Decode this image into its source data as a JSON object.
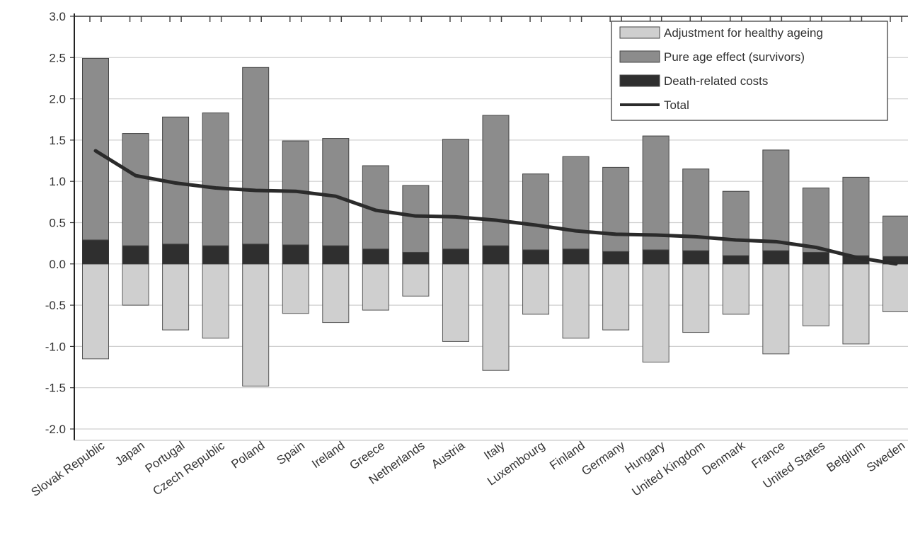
{
  "chart_data": {
    "type": "bar",
    "stacked": true,
    "categories": [
      "Slovak Republic",
      "Japan",
      "Portugal",
      "Czech Republic",
      "Poland",
      "Spain",
      "Ireland",
      "Greece",
      "Netherlands",
      "Austria",
      "Italy",
      "Luxembourg",
      "Finland",
      "Germany",
      "Hungary",
      "United Kingdom",
      "Denmark",
      "France",
      "United States",
      "Belgium",
      "Sweden"
    ],
    "series": [
      {
        "name": "Adjustment for healthy ageing",
        "kind": "bar",
        "color": "#cfcfcf",
        "values": [
          -1.15,
          -0.5,
          -0.8,
          -0.9,
          -1.48,
          -0.6,
          -0.71,
          -0.56,
          -0.39,
          -0.94,
          -1.29,
          -0.61,
          -0.9,
          -0.8,
          -1.19,
          -0.83,
          -0.61,
          -1.09,
          -0.75,
          -0.97,
          -0.58
        ]
      },
      {
        "name": "Pure age effect (survivors)",
        "kind": "bar",
        "color": "#8c8c8c",
        "values": [
          2.2,
          1.36,
          1.54,
          1.61,
          2.14,
          1.26,
          1.3,
          1.01,
          0.81,
          1.33,
          1.58,
          0.92,
          1.12,
          1.02,
          1.38,
          0.99,
          0.78,
          1.22,
          0.78,
          0.95,
          0.49
        ]
      },
      {
        "name": "Death-related costs",
        "kind": "bar",
        "color": "#2f2f2f",
        "values": [
          0.29,
          0.22,
          0.24,
          0.22,
          0.24,
          0.23,
          0.22,
          0.18,
          0.14,
          0.18,
          0.22,
          0.17,
          0.18,
          0.15,
          0.17,
          0.16,
          0.1,
          0.16,
          0.14,
          0.1,
          0.09
        ]
      },
      {
        "name": "Total",
        "kind": "line",
        "color": "#2b2b2b",
        "values": [
          1.37,
          1.07,
          0.98,
          0.92,
          0.89,
          0.88,
          0.82,
          0.65,
          0.58,
          0.57,
          0.53,
          0.47,
          0.4,
          0.36,
          0.35,
          0.33,
          0.29,
          0.27,
          0.2,
          0.08,
          0.0
        ]
      }
    ],
    "xlabel": "",
    "ylabel": "",
    "ylim": [
      -2.0,
      3.0
    ],
    "yticks": [
      "3.0",
      "2.5",
      "2.0",
      "1.5",
      "1.0",
      "0.5",
      "0.0",
      "-0.5",
      "-1.0",
      "-1.5",
      "-2.0"
    ],
    "ytick_values": [
      3.0,
      2.5,
      2.0,
      1.5,
      1.0,
      0.5,
      0.0,
      -0.5,
      -1.0,
      -1.5,
      -2.0
    ],
    "grid": true,
    "legend_position": "top-right",
    "legend": [
      "Adjustment for healthy ageing",
      "Pure age effect (survivors)",
      "Death-related costs",
      "Total"
    ]
  }
}
